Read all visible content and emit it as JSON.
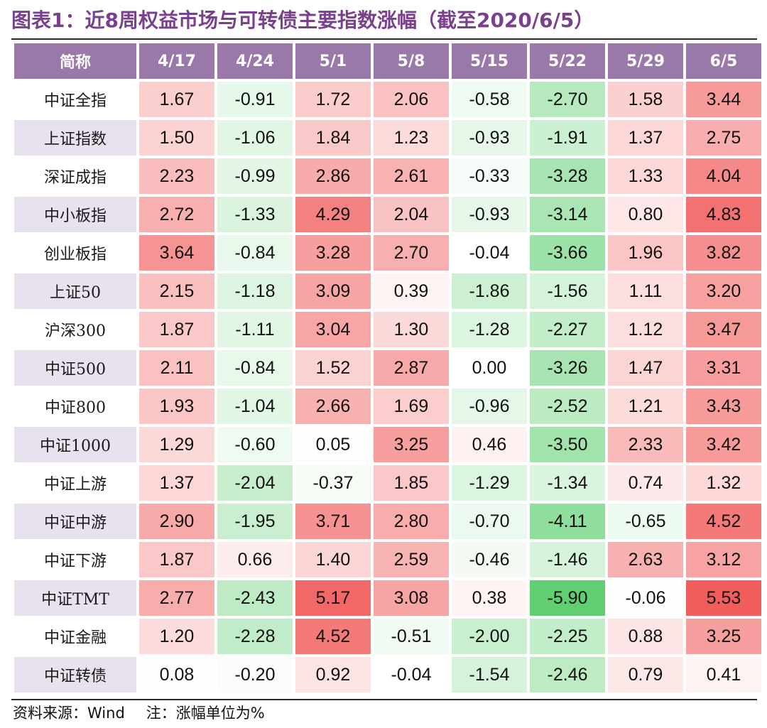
{
  "chart_data": {
    "type": "table",
    "title": "图表1：近8周权益市场与可转债主要指数涨幅（截至2020/6/5）",
    "corner_label": "简称",
    "columns": [
      "4/17",
      "4/24",
      "5/1",
      "5/8",
      "5/15",
      "5/22",
      "5/29",
      "6/5"
    ],
    "rows": [
      {
        "name": "中证全指",
        "values": [
          "1.67",
          "-0.91",
          "1.72",
          "2.06",
          "-0.58",
          "-2.70",
          "1.58",
          "3.44"
        ]
      },
      {
        "name": "上证指数",
        "values": [
          "1.50",
          "-1.06",
          "1.84",
          "1.23",
          "-0.93",
          "-1.91",
          "1.37",
          "2.75"
        ]
      },
      {
        "name": "深证成指",
        "values": [
          "2.23",
          "-0.99",
          "2.86",
          "2.61",
          "-0.33",
          "-3.28",
          "1.33",
          "4.04"
        ]
      },
      {
        "name": "中小板指",
        "values": [
          "2.72",
          "-1.33",
          "4.29",
          "2.04",
          "-0.93",
          "-3.14",
          "0.80",
          "4.83"
        ]
      },
      {
        "name": "创业板指",
        "values": [
          "3.64",
          "-0.84",
          "3.28",
          "2.70",
          "-0.04",
          "-3.66",
          "1.96",
          "3.82"
        ]
      },
      {
        "name": "上证50",
        "values": [
          "2.15",
          "-1.18",
          "3.09",
          "0.39",
          "-1.86",
          "-1.56",
          "1.11",
          "3.20"
        ]
      },
      {
        "name": "沪深300",
        "values": [
          "1.87",
          "-1.11",
          "3.04",
          "1.30",
          "-1.28",
          "-2.27",
          "1.12",
          "3.47"
        ]
      },
      {
        "name": "中证500",
        "values": [
          "2.11",
          "-0.84",
          "1.52",
          "2.87",
          "0.00",
          "-3.26",
          "1.47",
          "3.31"
        ]
      },
      {
        "name": "中证800",
        "values": [
          "1.93",
          "-1.04",
          "2.66",
          "1.69",
          "-0.96",
          "-2.52",
          "1.21",
          "3.43"
        ]
      },
      {
        "name": "中证1000",
        "values": [
          "1.29",
          "-0.60",
          "0.05",
          "3.25",
          "0.46",
          "-3.50",
          "2.33",
          "3.42"
        ]
      },
      {
        "name": "中证上游",
        "values": [
          "1.37",
          "-2.04",
          "-0.37",
          "1.85",
          "-1.29",
          "-1.34",
          "0.74",
          "1.32"
        ]
      },
      {
        "name": "中证中游",
        "values": [
          "2.90",
          "-1.95",
          "3.71",
          "2.80",
          "-0.70",
          "-4.11",
          "-0.65",
          "4.52"
        ]
      },
      {
        "name": "中证下游",
        "values": [
          "1.87",
          "0.66",
          "1.40",
          "2.59",
          "-0.46",
          "-1.46",
          "2.63",
          "3.12"
        ]
      },
      {
        "name": "中证TMT",
        "values": [
          "2.77",
          "-2.43",
          "5.17",
          "3.08",
          "0.38",
          "-5.90",
          "-0.06",
          "5.53"
        ]
      },
      {
        "name": "中证金融",
        "values": [
          "1.20",
          "-2.28",
          "4.52",
          "-0.51",
          "-2.00",
          "-2.25",
          "0.88",
          "3.25"
        ]
      },
      {
        "name": "中证转债",
        "values": [
          "0.08",
          "-0.20",
          "0.92",
          "-0.04",
          "-1.54",
          "-2.46",
          "0.79",
          "0.41"
        ]
      }
    ],
    "footer": {
      "source": "资料来源：Wind",
      "note": "注：涨幅单位为%"
    },
    "colors": {
      "title_text": "#7a3f8f",
      "header_bg": "#9a78aa",
      "header_text": "#ffffff",
      "name_alt_bg": "#e8e2ef",
      "positive_scale_end": "#f15c5c",
      "negative_scale_end": "#5fcf72",
      "neutral": "#ffffff"
    }
  }
}
